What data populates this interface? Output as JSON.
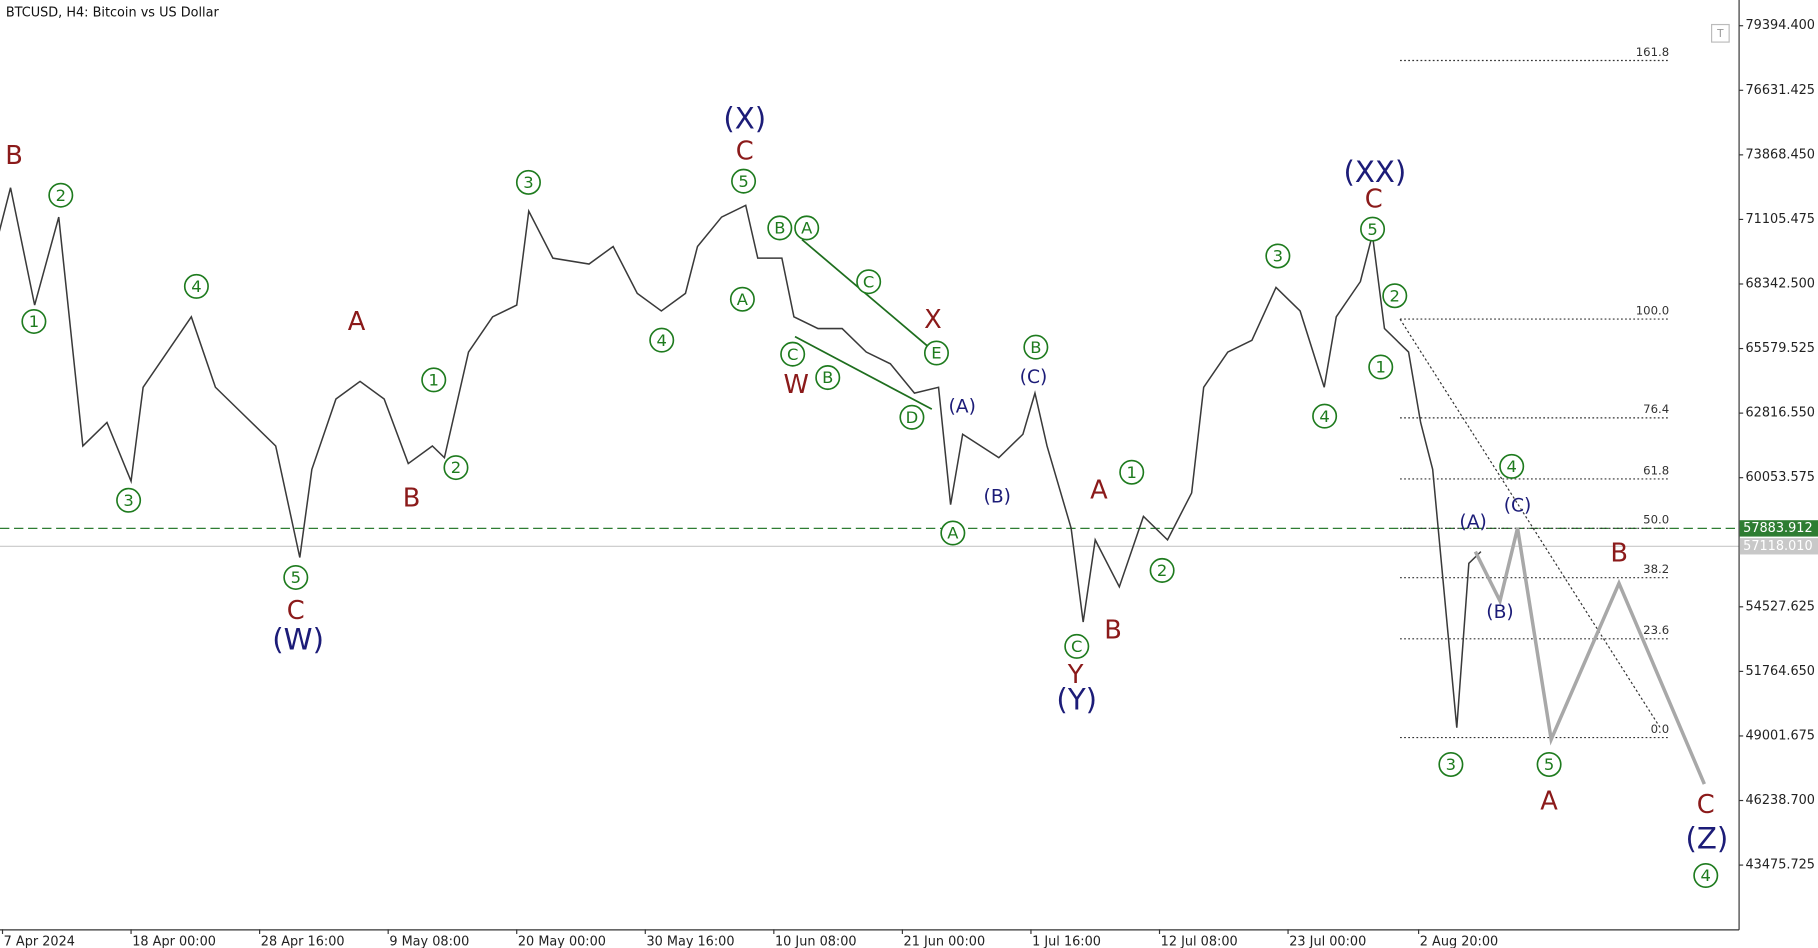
{
  "chart_data": {
    "type": "line",
    "title": "BTCUSD, H4:  Bitcoin vs US Dollar",
    "button": "T",
    "color": "#3a3a3a",
    "x": [
      "2024-04-07 00:00",
      "2024-04-08 00:00",
      "2024-04-10 00:00",
      "2024-04-12 00:00",
      "2024-04-14 00:00",
      "2024-04-16 00:00",
      "2024-04-18 00:00",
      "2024-04-19 00:00",
      "2024-04-21 00:00",
      "2024-04-23 00:00",
      "2024-04-25 00:00",
      "2024-04-27 00:00",
      "2024-04-30 00:00",
      "2024-05-02 00:00",
      "2024-05-03 00:00",
      "2024-05-05 00:00",
      "2024-05-07 00:00",
      "2024-05-09 00:00",
      "2024-05-11 00:00",
      "2024-05-13 00:00",
      "2024-05-14 00:00",
      "2024-05-16 00:00",
      "2024-05-18 00:00",
      "2024-05-20 00:00",
      "2024-05-21 00:00",
      "2024-05-23 00:00",
      "2024-05-26 00:00",
      "2024-05-28 00:00",
      "2024-05-30 00:00",
      "2024-06-01 00:00",
      "2024-06-03 00:00",
      "2024-06-04 00:00",
      "2024-06-06 00:00",
      "2024-06-08 00:00",
      "2024-06-09 00:00",
      "2024-06-11 00:00",
      "2024-06-12 00:00",
      "2024-06-14 00:00",
      "2024-06-16 00:00",
      "2024-06-18 00:00",
      "2024-06-20 00:00",
      "2024-06-22 00:00",
      "2024-06-24 00:00",
      "2024-06-25 00:00",
      "2024-06-26 00:00",
      "2024-06-29 00:00",
      "2024-07-01 00:00",
      "2024-07-02 00:00",
      "2024-07-03 00:00",
      "2024-07-05 00:00",
      "2024-07-06 00:00",
      "2024-07-07 00:00",
      "2024-07-09 00:00",
      "2024-07-11 00:00",
      "2024-07-13 00:00",
      "2024-07-15 00:00",
      "2024-07-16 00:00",
      "2024-07-18 00:00",
      "2024-07-20 00:00",
      "2024-07-22 00:00",
      "2024-07-24 00:00",
      "2024-07-26 00:00",
      "2024-07-27 00:00",
      "2024-07-29 00:00",
      "2024-07-30 00:00",
      "2024-07-31 00:00",
      "2024-08-02 00:00",
      "2024-08-03 00:00",
      "2024-08-04 00:00",
      "2024-08-06 00:00",
      "2024-08-07 00:00",
      "2024-08-08 00:00"
    ],
    "values": [
      70453,
      72462,
      67439,
      71207,
      61411,
      62416,
      59904,
      63923,
      65430,
      66937,
      63923,
      62918,
      61411,
      56639,
      60407,
      63421,
      64174,
      63421,
      60658,
      61411,
      60909,
      65430,
      66937,
      67439,
      71458,
      69448,
      69197,
      69948,
      67941,
      67188,
      67941,
      69948,
      71207,
      71709,
      69448,
      69448,
      66937,
      66435,
      66435,
      65430,
      64928,
      63672,
      63923,
      58900,
      61913,
      60909,
      61913,
      63672,
      61411,
      57895,
      53876,
      57393,
      55383,
      58397,
      57393,
      59402,
      63923,
      65430,
      65932,
      68193,
      67188,
      63923,
      66937,
      68444,
      70453,
      66435,
      65430,
      62416,
      60407,
      49356,
      56388,
      56890
    ],
    "xlim": [
      "2024-04-07 03:00",
      "2024-08-29 09:00"
    ],
    "xticks": [
      {
        "value": "2024-04-07 08:00",
        "label": "7 Apr 2024"
      },
      {
        "value": "2024-04-18 00:00",
        "label": "18 Apr 00:00"
      },
      {
        "value": "2024-04-28 16:00",
        "label": "28 Apr 16:00"
      },
      {
        "value": "2024-05-09 08:00",
        "label": "9 May 08:00"
      },
      {
        "value": "2024-05-20 00:00",
        "label": "20 May 00:00"
      },
      {
        "value": "2024-05-30 16:00",
        "label": "30 May 16:00"
      },
      {
        "value": "2024-06-10 08:00",
        "label": "10 Jun 08:00"
      },
      {
        "value": "2024-06-21 00:00",
        "label": "21 Jun 00:00"
      },
      {
        "value": "2024-07-01 16:00",
        "label": "1 Jul 16:00"
      },
      {
        "value": "2024-07-12 08:00",
        "label": "12 Jul 08:00"
      },
      {
        "value": "2024-07-23 00:00",
        "label": "23 Jul 00:00"
      },
      {
        "value": "2024-08-02 20:00",
        "label": "2 Aug 20:00"
      }
    ],
    "ylim": [
      40727.8,
      80495.3
    ],
    "yticks": [
      {
        "value": 79394.4,
        "label": "79394.400"
      },
      {
        "value": 76631.425,
        "label": "76631.425"
      },
      {
        "value": 73868.45,
        "label": "73868.450"
      },
      {
        "value": 71105.475,
        "label": "71105.475"
      },
      {
        "value": 68342.5,
        "label": "68342.500"
      },
      {
        "value": 65579.525,
        "label": "65579.525"
      },
      {
        "value": 62816.55,
        "label": "62816.550"
      },
      {
        "value": 60053.575,
        "label": "60053.575"
      },
      {
        "value": 54527.625,
        "label": "54527.625"
      },
      {
        "value": 51764.65,
        "label": "51764.650"
      },
      {
        "value": 49001.675,
        "label": "49001.675"
      },
      {
        "value": 46238.7,
        "label": "46238.700"
      },
      {
        "value": 43475.725,
        "label": "43475.725"
      }
    ],
    "price_lines": [
      {
        "value": 57883.912,
        "label": "57883.912",
        "color": "#2e7d32",
        "dashed": true
      },
      {
        "value": 57118.01,
        "label": "57118.010",
        "color": "#c8c8c8",
        "dashed": false
      }
    ],
    "fibonacci": {
      "x": [
        "2024-08-01 07:00",
        "2024-08-23 15:00"
      ],
      "price_range": [
        48932,
        66840
      ],
      "levels": [
        161.8,
        {
          "value": 100,
          "label": "100.0"
        },
        76.4,
        61.8,
        {
          "value": 50,
          "label": "50.0"
        },
        38.2,
        23.6,
        {
          "value": 0,
          "label": "0.0"
        }
      ]
    },
    "trendline": {
      "x": [
        "2024-08-01 07:00",
        "2024-08-22 21:00"
      ],
      "values": [
        66840,
        49356
      ]
    },
    "projection": {
      "color": "#a8a8a8",
      "x": [
        "2024-08-07 13:00",
        "2024-08-09 14:00",
        "2024-08-11 01:00",
        "2024-08-13 20:00",
        "2024-08-19 11:00",
        "2024-08-26 13:00"
      ],
      "values": [
        56890,
        54780,
        57895,
        48853,
        55534,
        46944
      ]
    },
    "label_colors": {
      "circle": "#1e7b1e",
      "red": "#8b1a1a",
      "navy": "#1c1c78",
      "navy-small": "#1c1c78"
    },
    "annotations": [
      {
        "text": "B",
        "style": "red"
      },
      {
        "text": "2",
        "style": "circle"
      },
      {
        "text": "1",
        "style": "circle"
      },
      {
        "text": "4",
        "style": "circle"
      },
      {
        "text": "3",
        "style": "circle"
      },
      {
        "text": "A",
        "style": "red"
      },
      {
        "text": "1",
        "style": "circle"
      },
      {
        "text": "2",
        "style": "circle"
      },
      {
        "text": "B",
        "style": "red"
      },
      {
        "text": "5",
        "style": "circle"
      },
      {
        "text": "C",
        "style": "red"
      },
      {
        "text": "(W)",
        "style": "navy"
      },
      {
        "text": "3",
        "style": "circle"
      },
      {
        "text": "(X)",
        "style": "navy"
      },
      {
        "text": "C",
        "style": "red"
      },
      {
        "text": "5",
        "style": "circle"
      },
      {
        "text": "A",
        "style": "circle"
      },
      {
        "text": "4",
        "style": "circle"
      },
      {
        "text": "B",
        "style": "circle"
      },
      {
        "text": "A",
        "style": "circle"
      },
      {
        "text": "C",
        "style": "circle"
      },
      {
        "text": "X",
        "style": "red"
      },
      {
        "text": "E",
        "style": "circle"
      },
      {
        "text": "C",
        "style": "circle"
      },
      {
        "text": "W",
        "style": "red"
      },
      {
        "text": "B",
        "style": "circle"
      },
      {
        "text": "D",
        "style": "circle"
      },
      {
        "text": "(A)",
        "style": "navy-small"
      },
      {
        "text": "(B)",
        "style": "navy-small"
      },
      {
        "text": "A",
        "style": "circle"
      },
      {
        "text": "(C)",
        "style": "navy-small"
      },
      {
        "text": "B",
        "style": "circle"
      },
      {
        "text": "A",
        "style": "red"
      },
      {
        "text": "1",
        "style": "circle"
      },
      {
        "text": "2",
        "style": "circle"
      },
      {
        "text": "B",
        "style": "red"
      },
      {
        "text": "C",
        "style": "circle"
      },
      {
        "text": "Y",
        "style": "red"
      },
      {
        "text": "(Y)",
        "style": "navy"
      },
      {
        "text": "3",
        "style": "circle"
      },
      {
        "text": "(XX)",
        "style": "navy"
      },
      {
        "text": "C",
        "style": "red"
      },
      {
        "text": "5",
        "style": "circle"
      },
      {
        "text": "2",
        "style": "circle"
      },
      {
        "text": "1",
        "style": "circle"
      },
      {
        "text": "4",
        "style": "circle"
      },
      {
        "text": "4",
        "style": "circle"
      },
      {
        "text": "(C)",
        "style": "navy-small"
      },
      {
        "text": "(A)",
        "style": "navy-small"
      },
      {
        "text": "(B)",
        "style": "navy-small"
      },
      {
        "text": "3",
        "style": "circle"
      },
      {
        "text": "5",
        "style": "circle"
      },
      {
        "text": "A",
        "style": "red"
      },
      {
        "text": "B",
        "style": "red"
      },
      {
        "text": "C",
        "style": "red"
      },
      {
        "text": "(Z)",
        "style": "navy"
      },
      {
        "text": "4",
        "style": "circle"
      }
    ]
  }
}
